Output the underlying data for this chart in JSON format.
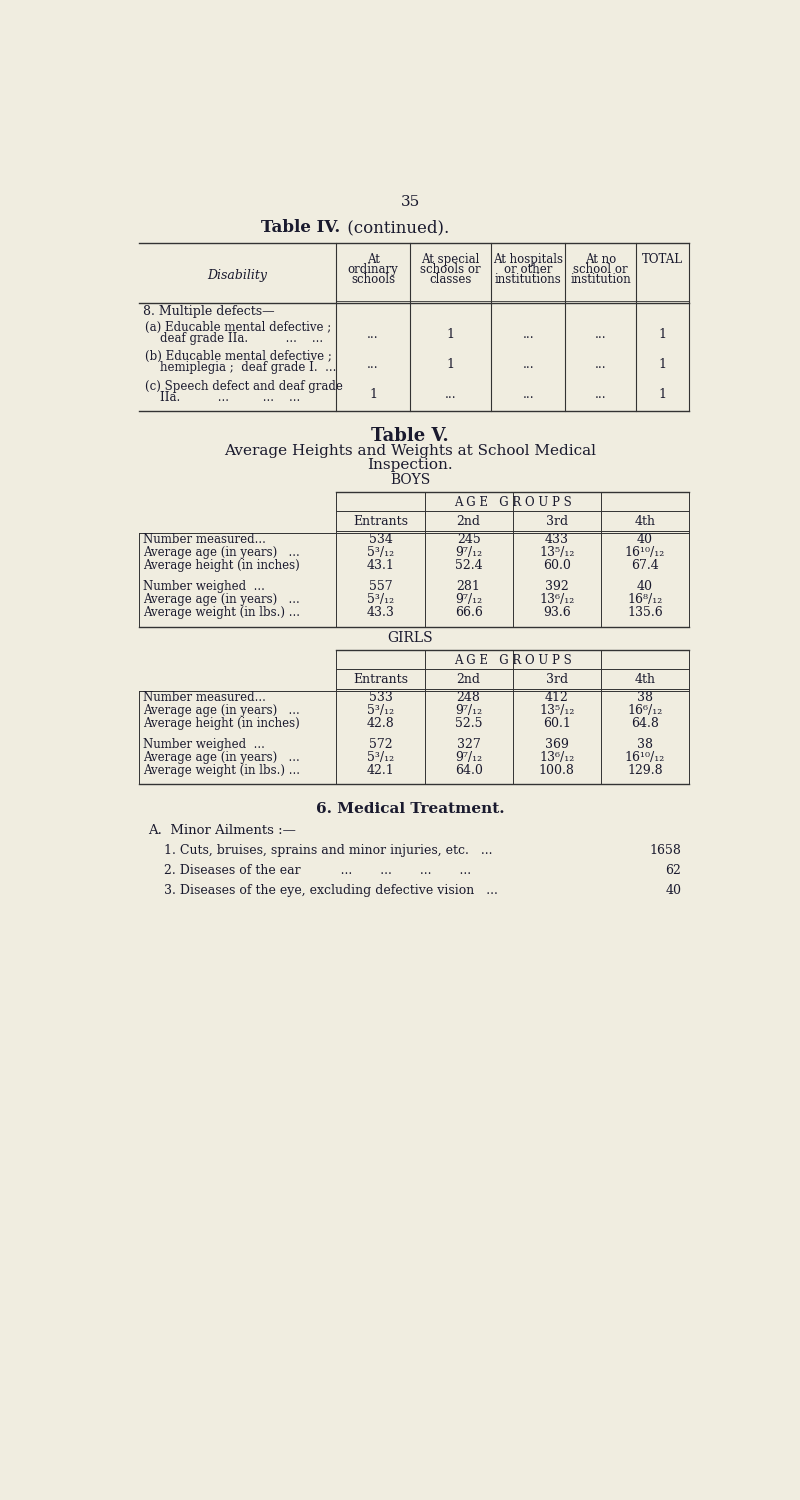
{
  "bg_color": "#f0ede0",
  "text_color": "#1a1a2e",
  "page_number": "35",
  "table4_title_bold": "Table IV.",
  "table4_title_normal": " (continued).",
  "table4_col_headers": [
    "At\nordinary\nschools",
    "At special\nschools or\nclasses",
    "At hospitals\nor other\ninstitutions",
    "At no\nschool or\ninstitution",
    "Total"
  ],
  "table4_rows": [
    [
      "8. Multiple defects—",
      "",
      "",
      "",
      "",
      ""
    ],
    [
      "(a) Educable mental defective ;\n    deaf grade IIa.          ...    ...",
      "...",
      "1",
      "...",
      "...",
      "1"
    ],
    [
      "(b) Educable mental defective ;\n    hemiplegia ;  deaf grade I.  ...",
      "...",
      "1",
      "...",
      "...",
      "1"
    ],
    [
      "(c) Speech defect and deaf grade\n    IIa.          ...         ...    ...",
      "1",
      "...",
      "...",
      "...",
      "1"
    ]
  ],
  "table5_title": "Table V.",
  "table5_subtitle_line1": "Average Heights and Weights at School Medical",
  "table5_subtitle_line2": "Inspection.",
  "boys_label": "BOYS",
  "girls_label": "GIRLS",
  "age_groups_label": "A G E   G R O U P S",
  "age_group_cols": [
    "Entrants",
    "2nd",
    "3rd",
    "4th"
  ],
  "boys_measured_rows": [
    [
      "Number measured...",
      "534",
      "245",
      "433",
      "40"
    ],
    [
      "Average age (in years)   ...",
      "5³/₁₂",
      "9⁷/₁₂",
      "13⁵/₁₂",
      "16¹⁰/₁₂"
    ],
    [
      "Average height (in inches)",
      "43.1",
      "52.4",
      "60.0",
      "67.4"
    ]
  ],
  "boys_weighed_rows": [
    [
      "Number weighed  ...",
      "557",
      "281",
      "392",
      "40"
    ],
    [
      "Average age (in years)   ...",
      "5³/₁₂",
      "9⁷/₁₂",
      "13⁶/₁₂",
      "16⁸/₁₂"
    ],
    [
      "Average weight (in lbs.) ...",
      "43.3",
      "66.6",
      "93.6",
      "135.6"
    ]
  ],
  "girls_measured_rows": [
    [
      "Number measured...",
      "533",
      "248",
      "412",
      "38"
    ],
    [
      "Average age (in years)   ...",
      "5³/₁₂",
      "9⁷/₁₂",
      "13⁵/₁₂",
      "16⁶/₁₂"
    ],
    [
      "Average height (in inches)",
      "42.8",
      "52.5",
      "60.1",
      "64.8"
    ]
  ],
  "girls_weighed_rows": [
    [
      "Number weighed  ...",
      "572",
      "327",
      "369",
      "38"
    ],
    [
      "Average age (in years)   ...",
      "5³/₁₂",
      "9⁷/₁₂",
      "13⁶/₁₂",
      "16¹⁰/₁₂"
    ],
    [
      "Average weight (in lbs.) ...",
      "42.1",
      "64.0",
      "100.8",
      "129.8"
    ]
  ],
  "section6_title": "6. Medical Treatment.",
  "sectionA_title": "A.  Minor Ailments :—",
  "ailments": [
    [
      "1. Cuts, bruises, sprains and minor injuries, etc.   ...",
      "1658"
    ],
    [
      "2. Diseases of the ear          ...       ...       ...       ...",
      "62"
    ],
    [
      "3. Diseases of the eye, excluding defective vision   ...",
      "40"
    ]
  ]
}
